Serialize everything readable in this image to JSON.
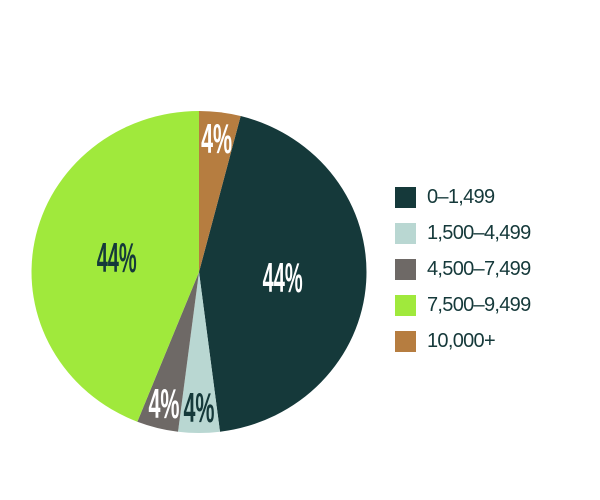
{
  "chart_data": {
    "type": "pie",
    "title": "",
    "direction": "clockwise",
    "start_angle_deg": 14.4,
    "legend_position": "right",
    "background_color": "#ffffff",
    "legend_text_color": "#15393a",
    "segments": [
      {
        "label": "0–1,499",
        "value": 44,
        "percent_label": "44%",
        "color": "#15393a",
        "label_color": "#ffffff"
      },
      {
        "label": "1,500–4,499",
        "value": 4,
        "percent_label": "4%",
        "color": "#b9d7d2",
        "label_color": "#15393a"
      },
      {
        "label": "4,500–7,499",
        "value": 4,
        "percent_label": "4%",
        "color": "#6e6966",
        "label_color": "#ffffff"
      },
      {
        "label": "7,500–9,499",
        "value": 44,
        "percent_label": "44%",
        "color": "#a0e93c",
        "label_color": "#15393a"
      },
      {
        "label": "10,000+",
        "value": 4,
        "percent_label": "4%",
        "color": "#b67d40",
        "label_color": "#ffffff"
      }
    ]
  }
}
